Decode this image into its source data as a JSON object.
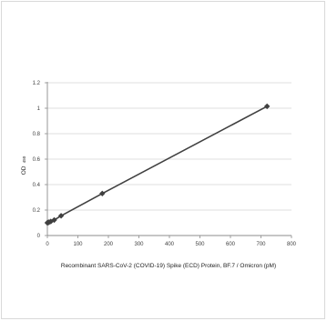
{
  "chart_data": {
    "type": "line",
    "xlabel": "Recombinant SARS-CoV-2 (COVID-19) Spike (ECD) Protein, BF.7 / Omicron (pM)",
    "ylabel": "OD",
    "ylabel_subscript": "450",
    "xlim": [
      0,
      800
    ],
    "ylim": [
      0,
      1.2
    ],
    "x_ticks": [
      0,
      100,
      200,
      300,
      400,
      500,
      600,
      700,
      800
    ],
    "y_ticks": [
      0,
      0.2,
      0.4,
      0.6,
      0.8,
      1,
      1.2
    ],
    "grid": true,
    "legend": false,
    "series": [
      {
        "x": [
          0,
          2.8,
          5.6,
          11.3,
          22.5,
          45,
          180,
          720
        ],
        "y": [
          0.1,
          0.102,
          0.105,
          0.11,
          0.122,
          0.155,
          0.33,
          1.015
        ],
        "color": "#404040",
        "marker": "diamond"
      }
    ]
  }
}
